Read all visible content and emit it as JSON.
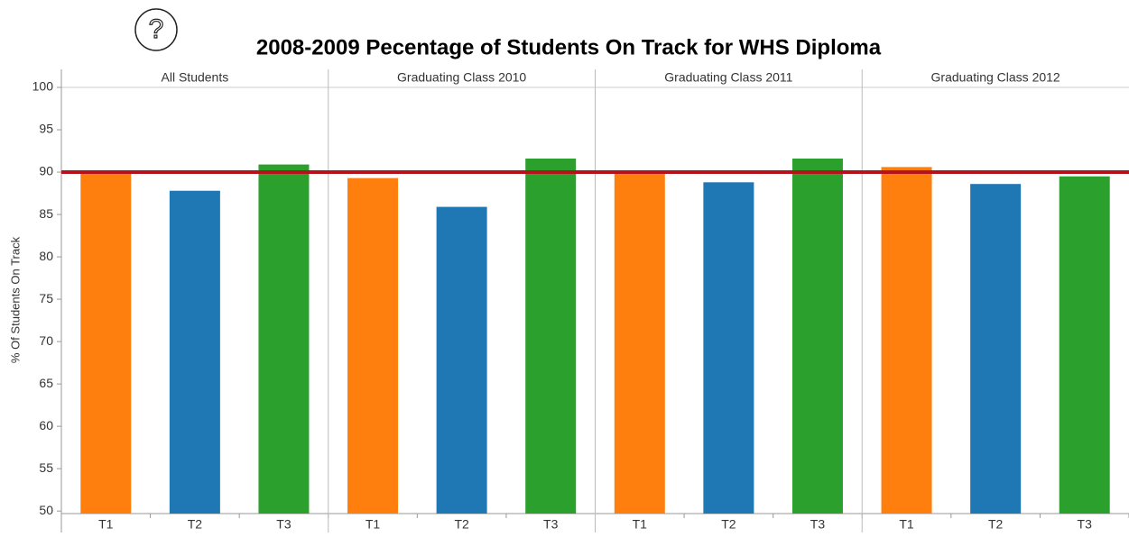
{
  "help_icon_label": "?",
  "chart_data": {
    "type": "bar",
    "title": "2008-2009 Pecentage of Students On Track for WHS Diploma",
    "y_label": "% Of Students On Track",
    "categories": [
      "T1",
      "T2",
      "T3"
    ],
    "colors": [
      "#ff7f0e",
      "#1f77b4",
      "#2ca02c"
    ],
    "facets": [
      {
        "name": "All Students",
        "values": [
          90.1,
          87.8,
          90.9
        ]
      },
      {
        "name": "Graduating Class 2010",
        "values": [
          89.3,
          85.9,
          91.6
        ]
      },
      {
        "name": "Graduating Class 2011",
        "values": [
          90.1,
          88.8,
          91.6
        ]
      },
      {
        "name": "Graduating Class 2012",
        "values": [
          90.6,
          88.6,
          89.5
        ]
      }
    ],
    "reference_line": 90,
    "reference_color": "#b5121b",
    "ylim": [
      49.7,
      100
    ],
    "yticks": [
      50,
      55,
      60,
      65,
      70,
      75,
      80,
      85,
      90,
      95,
      100
    ],
    "grid": false
  }
}
